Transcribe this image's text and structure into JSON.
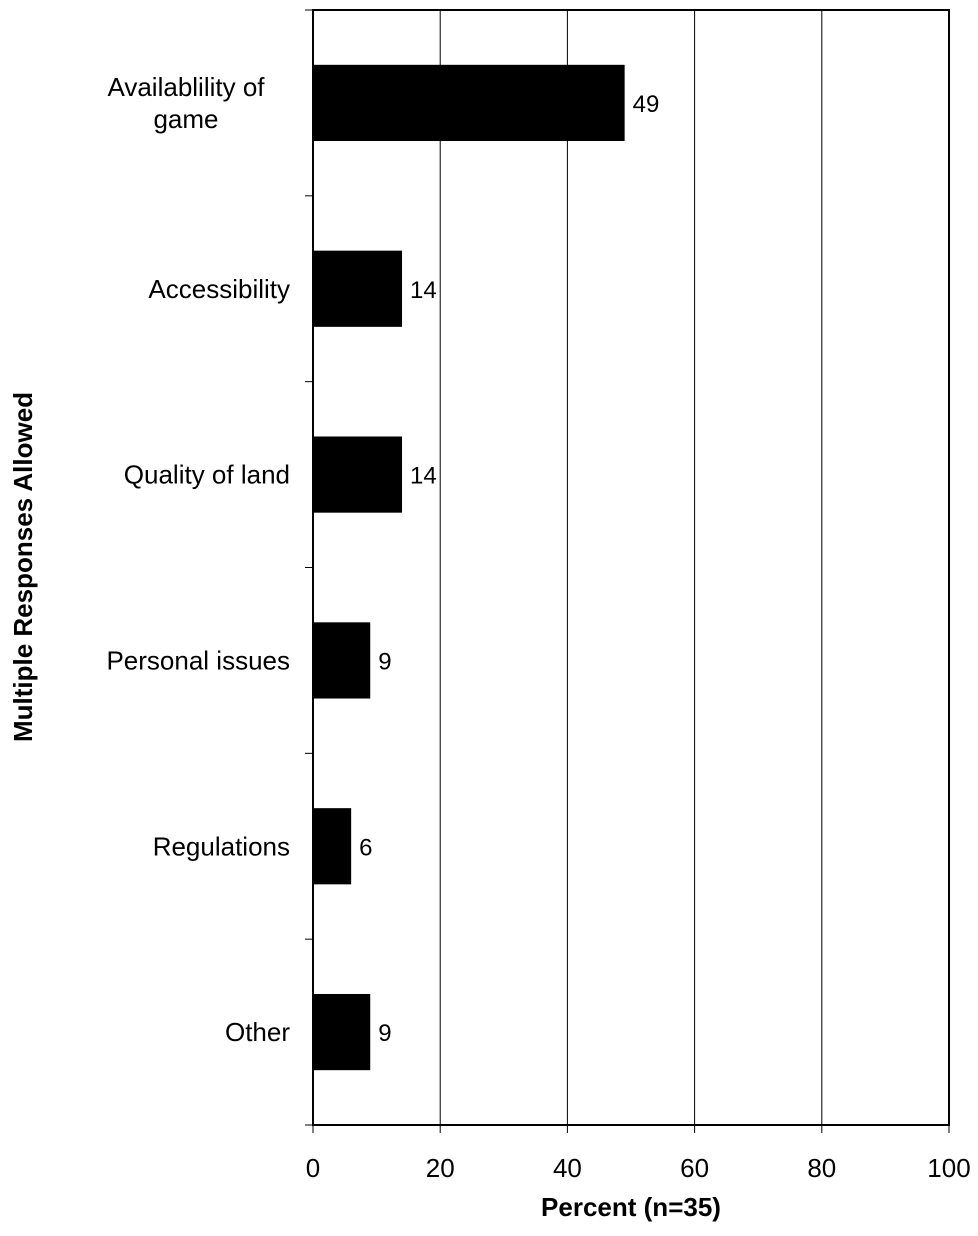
{
  "chart_data": {
    "type": "bar",
    "orientation": "horizontal",
    "categories": [
      [
        "Availablility of",
        "game"
      ],
      [
        "Accessibility"
      ],
      [
        "Quality of land"
      ],
      [
        "Personal issues"
      ],
      [
        "Regulations"
      ],
      [
        "Other"
      ]
    ],
    "values": [
      49,
      14,
      14,
      9,
      6,
      9
    ],
    "data_labels": [
      "49",
      "14",
      "14",
      "9",
      "6",
      "9"
    ],
    "xlabel": "Percent (n=35)",
    "ylabel": "Multiple Responses Allowed",
    "xlim": [
      0,
      100
    ],
    "xticks": [
      0,
      20,
      40,
      60,
      80,
      100
    ],
    "xtick_labels": [
      "0",
      "20",
      "40",
      "60",
      "80",
      "100"
    ],
    "grid": "vertical",
    "legend": "none",
    "colors": {
      "bar": "#000000",
      "grid": "#000000",
      "background": "#ffffff"
    }
  }
}
